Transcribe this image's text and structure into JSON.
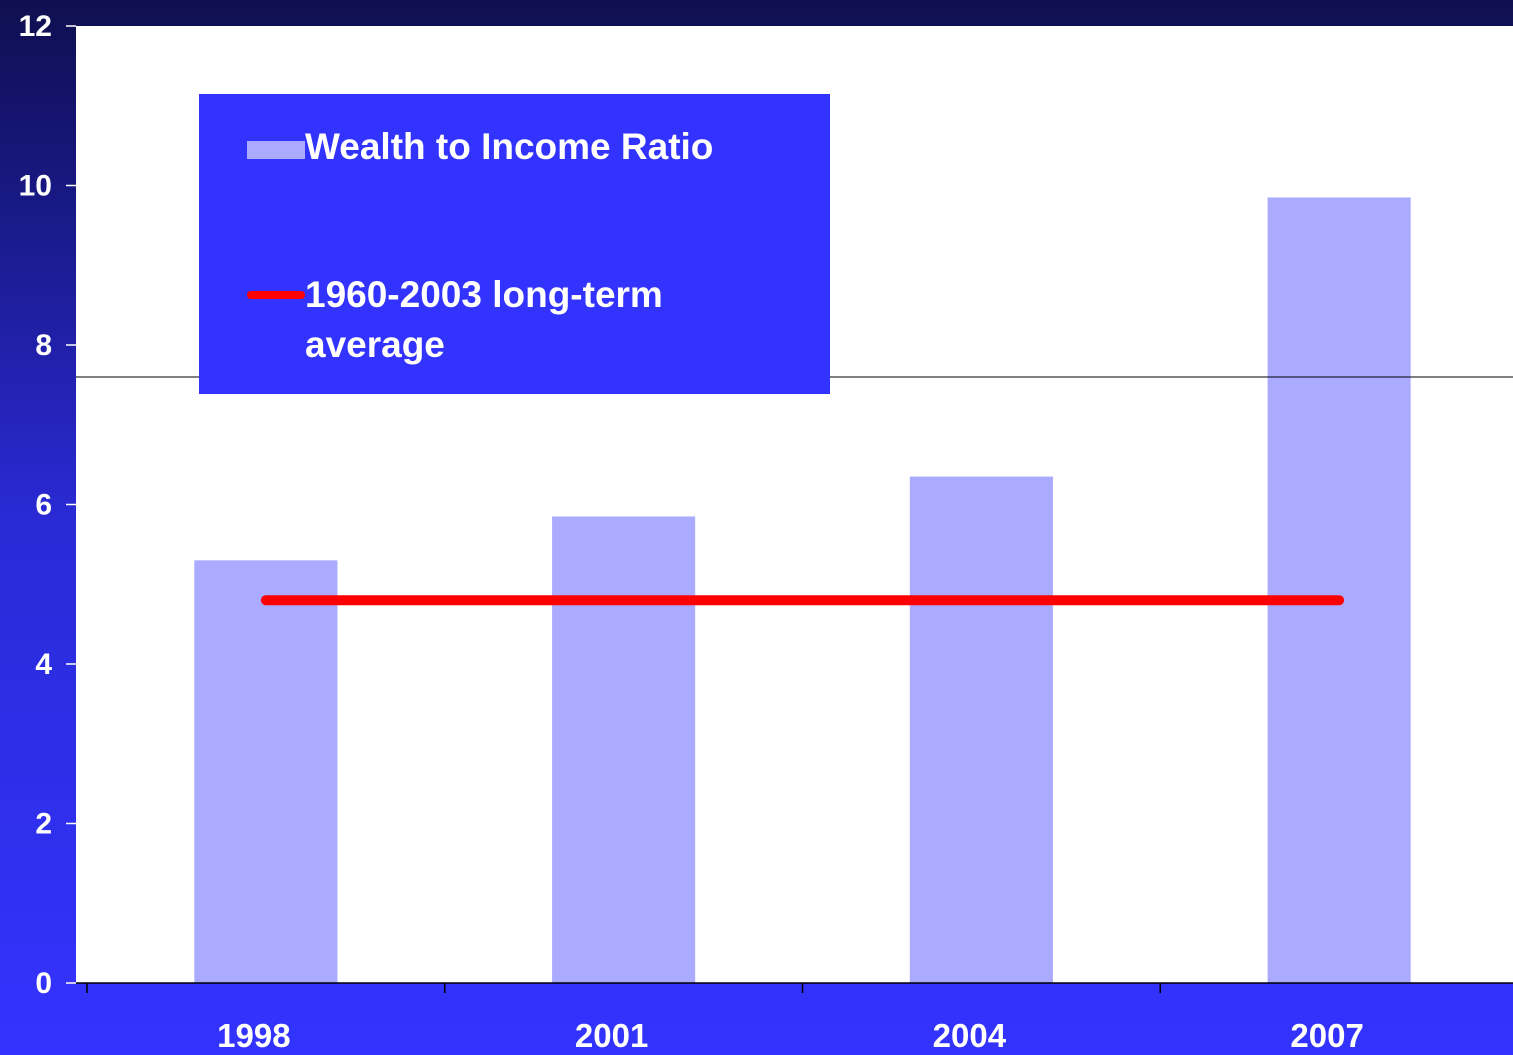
{
  "chart_data": {
    "type": "bar",
    "categories": [
      "1998",
      "2001",
      "2004",
      "2007"
    ],
    "series": [
      {
        "name": "Wealth to Income Ratio",
        "type": "bar",
        "values": [
          5.3,
          5.85,
          6.35,
          9.85
        ]
      },
      {
        "name": "1960-2003 long-term average",
        "type": "line",
        "values": [
          4.8,
          4.8,
          4.8,
          4.8
        ]
      }
    ],
    "ylim": [
      0,
      12
    ],
    "yticks": [
      0,
      2,
      4,
      6,
      8,
      10,
      12
    ],
    "title": "",
    "xlabel": "",
    "ylabel": "",
    "grid": false,
    "legend_position": "top-left",
    "colors": {
      "bar": "#aaaaff",
      "line": "#ff0000",
      "plot_background": "#ffffff",
      "page_background": "#3333ff",
      "text": "#ffffff"
    }
  },
  "legend": {
    "bar_label": "Wealth to Income Ratio",
    "line_label": "1960-2003 long-term average"
  }
}
